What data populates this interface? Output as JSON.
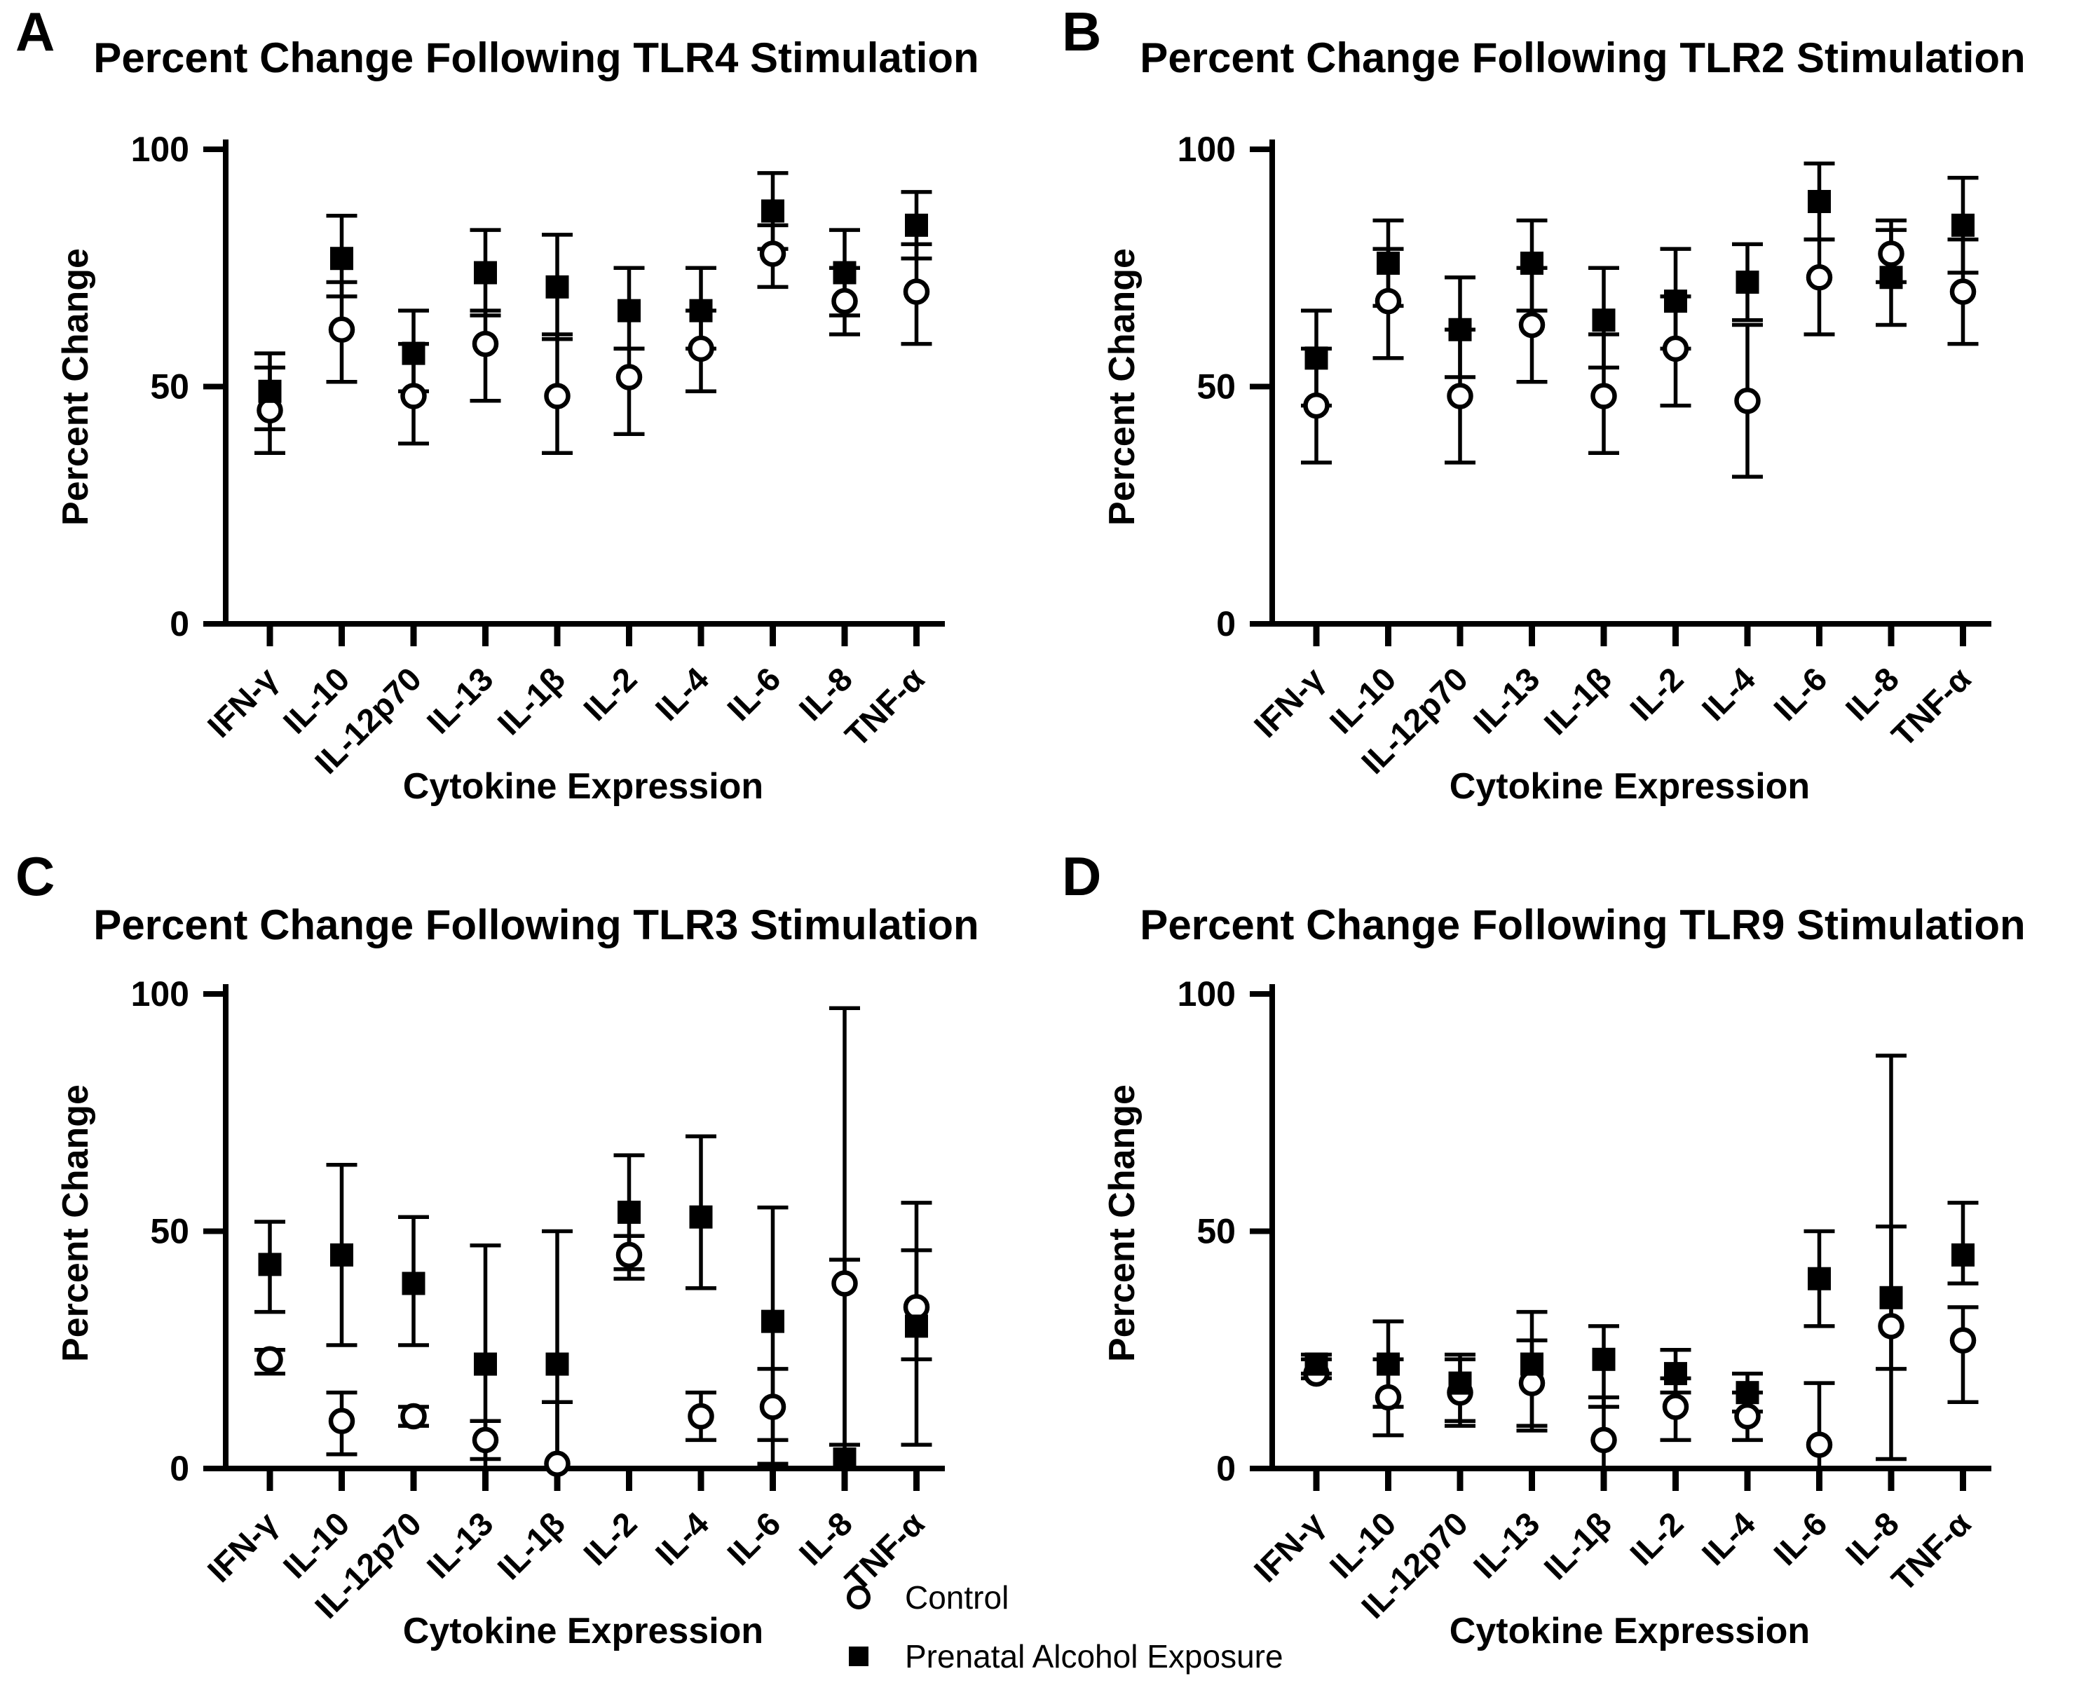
{
  "legend": {
    "control_label": "Control",
    "pae_label": "Prenatal Alcohol Exposure"
  },
  "colors": {
    "foreground": "#000000",
    "background": "#ffffff"
  },
  "chart_data": [
    {
      "type": "scatter",
      "panel_label": "A",
      "title": "Percent Change Following TLR4 Stimulation",
      "xlabel": "Cytokine Expression",
      "ylabel": "Percent Change",
      "ylim": [
        0,
        100
      ],
      "yticks": [
        0,
        50,
        100
      ],
      "grid": false,
      "categories": [
        "IFN-γ",
        "IL-10",
        "IL-12p70",
        "IL-13",
        "IL-1β",
        "IL-2",
        "IL-4",
        "IL-6",
        "IL-8",
        "TNF-α"
      ],
      "series": [
        {
          "name": "Control",
          "marker": "open-circle",
          "values": [
            45,
            62,
            48,
            59,
            48,
            52,
            58,
            78,
            68,
            70
          ],
          "err_lo": [
            36,
            51,
            38,
            47,
            36,
            40,
            49,
            71,
            61,
            59
          ],
          "err_hi": [
            54,
            72,
            59,
            66,
            61,
            58,
            66,
            84,
            75,
            80
          ]
        },
        {
          "name": "Prenatal Alcohol Exposure",
          "marker": "filled-square",
          "values": [
            49,
            77,
            57,
            74,
            71,
            66,
            66,
            87,
            74,
            84
          ],
          "err_lo": [
            41,
            69,
            49,
            65,
            60,
            58,
            58,
            79,
            65,
            77
          ],
          "err_hi": [
            57,
            86,
            66,
            83,
            82,
            75,
            75,
            95,
            83,
            91
          ]
        }
      ]
    },
    {
      "type": "scatter",
      "panel_label": "B",
      "title": "Percent Change Following TLR2 Stimulation",
      "xlabel": "Cytokine Expression",
      "ylabel": "Percent Change",
      "ylim": [
        0,
        100
      ],
      "yticks": [
        0,
        50,
        100
      ],
      "grid": false,
      "categories": [
        "IFN-γ",
        "IL-10",
        "IL-12p70",
        "IL-13",
        "IL-1β",
        "IL-2",
        "IL-4",
        "IL-6",
        "IL-8",
        "TNF-α"
      ],
      "series": [
        {
          "name": "Control",
          "marker": "open-circle",
          "values": [
            46,
            68,
            48,
            63,
            48,
            58,
            47,
            73,
            78,
            70
          ],
          "err_lo": [
            34,
            56,
            34,
            51,
            36,
            46,
            31,
            61,
            72,
            59
          ],
          "err_hi": [
            58,
            79,
            62,
            75,
            61,
            69,
            63,
            81,
            85,
            81
          ]
        },
        {
          "name": "Prenatal Alcohol Exposure",
          "marker": "filled-square",
          "values": [
            56,
            76,
            62,
            76,
            64,
            68,
            72,
            89,
            73,
            84
          ],
          "err_lo": [
            46,
            67,
            52,
            66,
            54,
            58,
            64,
            81,
            63,
            74
          ],
          "err_hi": [
            66,
            85,
            73,
            85,
            75,
            79,
            80,
            97,
            83,
            94
          ]
        }
      ]
    },
    {
      "type": "scatter",
      "panel_label": "C",
      "title": "Percent Change Following TLR3 Stimulation",
      "xlabel": "Cytokine Expression",
      "ylabel": "Percent Change",
      "ylim": [
        0,
        100
      ],
      "yticks": [
        0,
        50,
        100
      ],
      "grid": false,
      "categories": [
        "IFN-γ",
        "IL-10",
        "IL-12p70",
        "IL-13",
        "IL-1β",
        "IL-2",
        "IL-4",
        "IL-6",
        "IL-8",
        "TNF-α"
      ],
      "series": [
        {
          "name": "Control",
          "marker": "open-circle",
          "values": [
            23,
            10,
            11,
            6,
            1,
            45,
            11,
            13,
            39,
            34
          ],
          "err_lo": [
            20,
            3,
            9,
            2,
            0,
            40,
            6,
            6,
            5,
            23
          ],
          "err_hi": [
            25,
            16,
            13,
            10,
            14,
            49,
            16,
            21,
            44,
            46
          ]
        },
        {
          "name": "Prenatal Alcohol Exposure",
          "marker": "filled-square",
          "values": [
            43,
            45,
            39,
            22,
            22,
            54,
            53,
            31,
            2,
            30
          ],
          "err_lo": [
            33,
            26,
            26,
            0,
            0,
            42,
            38,
            1,
            0,
            5
          ],
          "err_hi": [
            52,
            64,
            53,
            47,
            50,
            66,
            70,
            55,
            97,
            56
          ]
        }
      ]
    },
    {
      "type": "scatter",
      "panel_label": "D",
      "title": "Percent Change Following TLR9 Stimulation",
      "xlabel": "Cytokine Expression",
      "ylabel": "Percent Change",
      "ylim": [
        0,
        100
      ],
      "yticks": [
        0,
        50,
        100
      ],
      "grid": false,
      "categories": [
        "IFN-γ",
        "IL-10",
        "IL-12p70",
        "IL-13",
        "IL-1β",
        "IL-2",
        "IL-4",
        "IL-6",
        "IL-8",
        "TNF-α"
      ],
      "series": [
        {
          "name": "Control",
          "marker": "open-circle",
          "values": [
            20,
            15,
            16,
            18,
            6,
            13,
            11,
            5,
            30,
            27
          ],
          "err_lo": [
            19,
            7,
            9,
            8,
            0,
            6,
            6,
            0,
            2,
            14
          ],
          "err_hi": [
            23,
            23,
            23,
            27,
            15,
            19,
            16,
            18,
            51,
            34
          ]
        },
        {
          "name": "Prenatal Alcohol Exposure",
          "marker": "filled-square",
          "values": [
            22,
            22,
            18,
            22,
            23,
            20,
            16,
            40,
            36,
            45
          ],
          "err_lo": [
            20,
            13,
            10,
            9,
            13,
            16,
            12,
            30,
            21,
            39
          ],
          "err_hi": [
            24,
            31,
            24,
            33,
            30,
            25,
            20,
            50,
            87,
            56
          ]
        }
      ]
    }
  ]
}
